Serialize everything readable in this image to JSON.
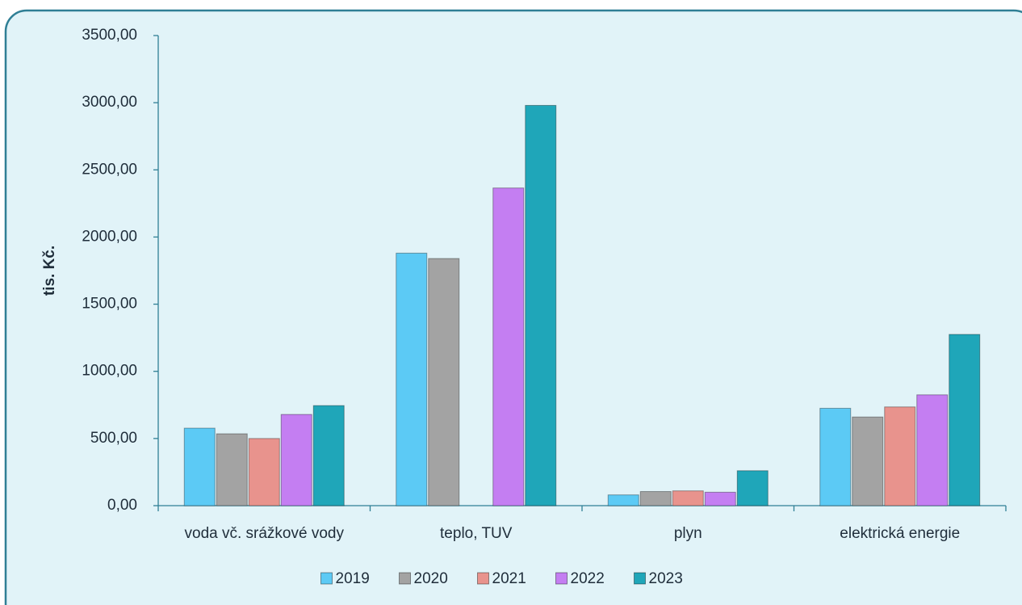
{
  "chart_data": {
    "type": "bar",
    "y_label": "tis. Kč.",
    "categories": [
      "voda vč. srážkové vody",
      "teplo, TUV",
      "plyn",
      "elektrická energie"
    ],
    "series": [
      {
        "name": "2019",
        "color": "#5ccaf5",
        "values": [
          577,
          1880,
          80,
          725
        ]
      },
      {
        "name": "2020",
        "color": "#a3a3a3",
        "values": [
          535,
          1840,
          105,
          660
        ]
      },
      {
        "name": "2021",
        "color": "#e8938d",
        "values": [
          500,
          null,
          110,
          735
        ]
      },
      {
        "name": "2022",
        "color": "#c47ef2",
        "values": [
          679,
          2365,
          100,
          825
        ]
      },
      {
        "name": "2023",
        "color": "#1fa6b9",
        "values": [
          745,
          2980,
          260,
          1275
        ]
      }
    ],
    "ylim": [
      0,
      3500
    ],
    "yticks": [
      {
        "value": 0,
        "label": "0,00"
      },
      {
        "value": 500,
        "label": "500,00"
      },
      {
        "value": 1000,
        "label": "1000,00"
      },
      {
        "value": 1500,
        "label": "1500,00"
      },
      {
        "value": 2000,
        "label": "2000,00"
      },
      {
        "value": 2500,
        "label": "2500,00"
      },
      {
        "value": 3000,
        "label": "3000,00"
      },
      {
        "value": 3500,
        "label": "3500,00"
      }
    ],
    "legend": "bottom"
  }
}
